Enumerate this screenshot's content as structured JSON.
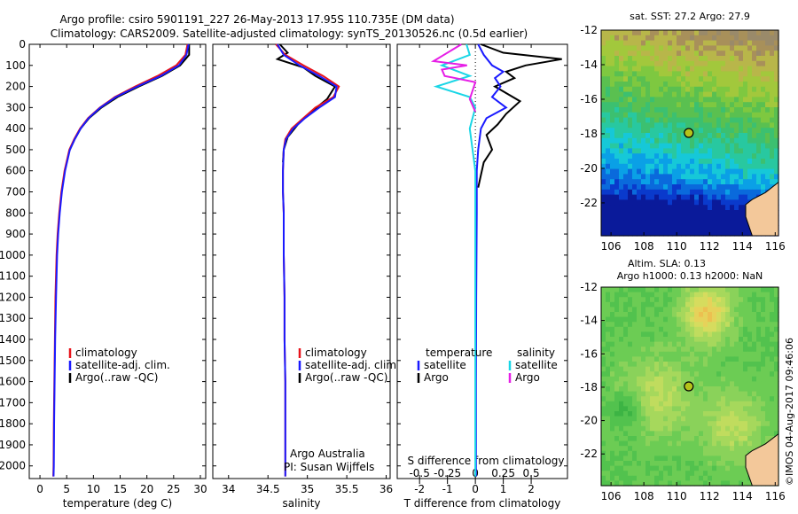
{
  "header": {
    "line1": "Argo profile: csiro 5901191_227 26-May-2013 17.95S 110.735E (DM data)",
    "line2": "Climatology: CARS2009. Satellite-adjusted climatology: synTS_20130526.nc (0.5d earlier)"
  },
  "colors": {
    "climatology": "#e8141c",
    "satellite": "#1a1aff",
    "argo": "#000000",
    "salinity_satellite": "#19d6e6",
    "salinity_argo": "#e61ee6"
  },
  "chart_data": [
    {
      "type": "line",
      "xlabel": "temperature (deg C)",
      "x_ticks": [
        "0",
        "5",
        "10",
        "15",
        "20",
        "25",
        "30"
      ],
      "y_ticks": [
        "0",
        "100",
        "200",
        "300",
        "400",
        "500",
        "600",
        "700",
        "800",
        "900",
        "1000",
        "1100",
        "1200",
        "1300",
        "1400",
        "1500",
        "1600",
        "1700",
        "1800",
        "1900",
        "2000"
      ],
      "xlim": [
        -2,
        31
      ],
      "ylim": [
        2060,
        0
      ],
      "legend": [
        "climatology",
        "satellite-adj. clim.",
        "Argo(..raw -QC)"
      ],
      "series": [
        {
          "name": "climatology",
          "x": [
            27.6,
            27.2,
            25.5,
            22.0,
            17.8,
            14.0,
            11.2,
            9.0,
            7.5,
            6.4,
            5.5,
            4.6,
            4.0,
            3.6,
            3.3,
            3.1,
            2.9,
            2.8,
            2.7,
            2.6,
            2.55,
            2.5
          ],
          "y": [
            0,
            50,
            100,
            150,
            200,
            250,
            300,
            350,
            400,
            450,
            500,
            600,
            700,
            800,
            900,
            1000,
            1200,
            1400,
            1600,
            1800,
            2000,
            2050
          ]
        },
        {
          "name": "satellite-adj. clim.",
          "x": [
            27.8,
            27.4,
            26.0,
            22.6,
            18.2,
            14.2,
            11.3,
            9.1,
            7.6,
            6.5,
            5.6,
            4.7,
            4.1,
            3.7,
            3.4,
            3.2,
            3.0,
            2.85,
            2.75,
            2.65,
            2.6,
            2.55
          ],
          "y": [
            0,
            50,
            100,
            150,
            200,
            250,
            300,
            350,
            400,
            450,
            500,
            600,
            700,
            800,
            900,
            1000,
            1200,
            1400,
            1600,
            1800,
            2000,
            2050
          ]
        },
        {
          "name": "Argo(..raw -QC)",
          "x": [
            27.9,
            27.9,
            26.2,
            22.8,
            18.5,
            14.5,
            11.5,
            9.2,
            7.6,
            6.5,
            5.6
          ],
          "y": [
            0,
            50,
            100,
            150,
            200,
            250,
            300,
            350,
            400,
            450,
            500
          ]
        }
      ]
    },
    {
      "type": "line",
      "xlabel": "salinity",
      "x_ticks": [
        "34",
        "34.5",
        "35",
        "35.5",
        "36"
      ],
      "xlim": [
        33.8,
        36.05
      ],
      "ylim": [
        2060,
        0
      ],
      "legend": [
        "climatology",
        "satellite-adj. clim.",
        "Argo(..raw -QC)"
      ],
      "annotation": [
        "Argo Australia",
        "PI: Susan Wijffels"
      ],
      "series": [
        {
          "name": "climatology",
          "x": [
            34.6,
            34.72,
            34.95,
            35.2,
            35.4,
            35.33,
            35.1,
            34.95,
            34.8,
            34.72,
            34.7,
            34.69,
            34.69,
            34.7,
            34.7,
            34.71,
            34.71,
            34.72,
            34.72,
            34.72,
            34.72
          ],
          "y": [
            0,
            50,
            100,
            150,
            200,
            250,
            300,
            350,
            400,
            450,
            500,
            600,
            700,
            800,
            1000,
            1200,
            1400,
            1600,
            1800,
            2000,
            2050
          ]
        },
        {
          "name": "satellite-adj. clim.",
          "x": [
            34.62,
            34.7,
            34.9,
            35.15,
            35.37,
            35.35,
            35.15,
            34.97,
            34.82,
            34.73,
            34.7,
            34.69,
            34.69,
            34.7,
            34.7,
            34.71,
            34.71,
            34.72,
            34.72,
            34.72,
            34.72
          ],
          "y": [
            0,
            50,
            100,
            150,
            200,
            250,
            300,
            350,
            400,
            450,
            500,
            600,
            700,
            800,
            1000,
            1200,
            1400,
            1600,
            1800,
            2000,
            2050
          ]
        },
        {
          "name": "Argo(..raw -QC)",
          "x": [
            34.65,
            34.75,
            34.62,
            34.95,
            35.1,
            35.35,
            35.25,
            35.05,
            34.88,
            34.75,
            34.7,
            34.69
          ],
          "y": [
            0,
            40,
            70,
            110,
            150,
            200,
            260,
            320,
            380,
            440,
            500,
            560
          ]
        }
      ]
    },
    {
      "type": "line",
      "xlabel": "T difference from climatology",
      "x_ticks": [
        "-2",
        "-1",
        "0",
        "1",
        "2"
      ],
      "x2label": "S difference from climatology",
      "x2_ticks": [
        "-0.5",
        "-0.25",
        "0",
        "0.25",
        "0.5"
      ],
      "xlim": [
        -2.8,
        3.3
      ],
      "ylim": [
        2060,
        0
      ],
      "legend": [
        "temperature",
        "satellite",
        "Argo",
        "salinity",
        "satellite",
        "Argo"
      ],
      "series": [
        {
          "name": "satellite",
          "x": [
            0.1,
            0.3,
            0.6,
            1.0,
            0.7,
            0.9,
            0.6,
            1.1,
            0.4,
            0.2,
            0.1,
            0.05,
            0.05,
            0.03,
            0.02,
            0.02
          ],
          "y": [
            0,
            50,
            100,
            130,
            160,
            200,
            250,
            300,
            350,
            400,
            500,
            600,
            800,
            1200,
            1600,
            2050
          ]
        },
        {
          "name": "Argo",
          "x": [
            0.2,
            1.0,
            3.1,
            1.8,
            1.1,
            1.4,
            0.7,
            1.6,
            1.1,
            0.8,
            0.4,
            0.6,
            0.3,
            0.2,
            0.1
          ],
          "y": [
            0,
            40,
            70,
            100,
            130,
            160,
            200,
            270,
            330,
            380,
            430,
            500,
            560,
            620,
            680
          ]
        },
        {
          "name": "satellite",
          "x": [
            -0.08,
            -0.05,
            -0.3,
            -0.05,
            -0.35,
            -0.05,
            0.0,
            -0.05,
            0.0,
            0.0,
            0.0
          ],
          "y": [
            0,
            50,
            100,
            150,
            200,
            250,
            300,
            400,
            600,
            1000,
            2050
          ]
        },
        {
          "name": "Argo",
          "x": [
            -0.5,
            -1.5,
            -0.3,
            -1.2,
            -1.1,
            0.0,
            -0.2,
            0.0
          ],
          "y": [
            0,
            80,
            100,
            120,
            150,
            180,
            260,
            320
          ]
        }
      ]
    },
    {
      "type": "heatmap",
      "title": "sat. SST: 27.2  Argo: 27.9",
      "x_ticks": [
        "106",
        "108",
        "110",
        "112",
        "114",
        "116"
      ],
      "y_ticks": [
        "-12",
        "-14",
        "-16",
        "-18",
        "-20",
        "-22"
      ],
      "xlim": [
        105.4,
        116.2
      ],
      "ylim": [
        -23.9,
        -12
      ]
    },
    {
      "type": "heatmap",
      "title": "Altim. SLA: 0.13",
      "subtitle": "Argo h1000: 0.13 h2000: NaN",
      "x_ticks": [
        "106",
        "108",
        "110",
        "112",
        "114",
        "116"
      ],
      "y_ticks": [
        "-12",
        "-14",
        "-16",
        "-18",
        "-20",
        "-22"
      ],
      "xlim": [
        105.4,
        116.2
      ],
      "ylim": [
        -23.9,
        -12
      ]
    }
  ],
  "footer": {
    "stamp": "©IMOS 04-Aug-2017 09:46:06"
  }
}
